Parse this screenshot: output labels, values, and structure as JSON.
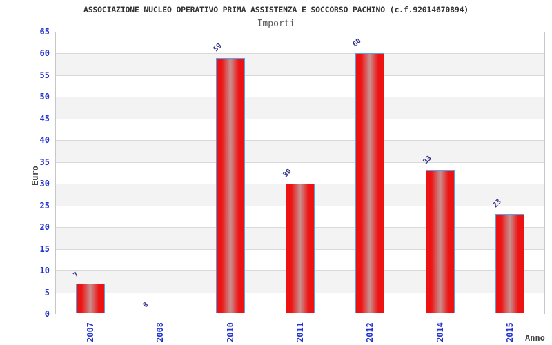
{
  "header": {
    "title": "ASSOCIAZIONE NUCLEO OPERATIVO PRIMA ASSISTENZA E SOCCORSO PACHINO (c.f.92014670894)",
    "subtitle": "Importi"
  },
  "chart_data": {
    "type": "bar",
    "title": "ASSOCIAZIONE NUCLEO OPERATIVO PRIMA ASSISTENZA E SOCCORSO PACHINO (c.f.92014670894)",
    "subtitle": "Importi",
    "xlabel": "Anno",
    "ylabel": "Euro",
    "categories": [
      "2007",
      "2008",
      "2010",
      "2011",
      "2012",
      "2014",
      "2015"
    ],
    "values": [
      7,
      0,
      59,
      30,
      60,
      33,
      23
    ],
    "value_labels": [
      "7",
      "0",
      "59",
      "30",
      "60",
      "33",
      "23"
    ],
    "ylim": [
      0,
      65
    ],
    "ytick_step": 5,
    "grid": "horizontal-bands-alternating",
    "legend_position": "none",
    "colors": {
      "bar_fill": "#ee1111",
      "bar_highlight": "#c99090",
      "bar_border": "#58a0e8",
      "tick_text": "#2233d0",
      "value_label_text": "#333388",
      "band_gray": "#f3f3f3",
      "band_white": "#ffffff",
      "gridline": "#d9d9d9",
      "plot_border": "#c6c6c6",
      "title_text": "#333333",
      "subtitle_text": "#5a5a5a",
      "axis_title_text": "#444444"
    }
  }
}
